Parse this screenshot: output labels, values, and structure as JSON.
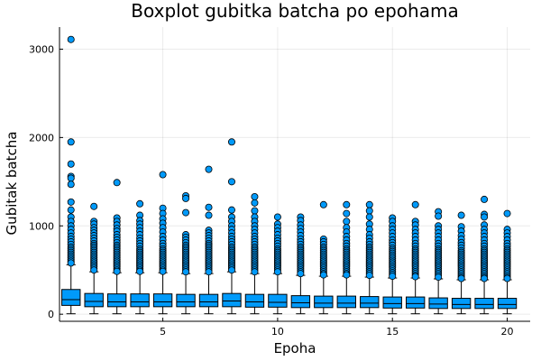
{
  "chart_data": {
    "type": "box",
    "title": "Boxplot gubitka batcha po epohama",
    "xlabel": "Epoha",
    "ylabel": "Gubitak batcha",
    "xlim": [
      0.5,
      21
    ],
    "ylim": [
      -80,
      3250
    ],
    "xticks": [
      5,
      10,
      15,
      20
    ],
    "yticks": [
      0,
      1000,
      2000,
      3000
    ],
    "grid": true,
    "legend": "none",
    "colors": {
      "box_fill": "#009AFA",
      "stroke": "#000000"
    },
    "boxes": [
      {
        "x": 1,
        "whisker_low": 5,
        "q1": 100,
        "median": 165,
        "q3": 280,
        "whisker_high": 560,
        "outliers": [
          3110,
          1950,
          1700,
          1560,
          1540,
          1470,
          1270,
          1180,
          1100,
          1050,
          1000,
          960,
          920,
          880,
          850,
          820,
          790,
          760,
          740,
          720,
          700,
          680,
          660,
          640,
          620,
          600,
          580
        ]
      },
      {
        "x": 2,
        "whisker_low": 5,
        "q1": 85,
        "median": 145,
        "q3": 235,
        "whisker_high": 480,
        "outliers": [
          1220,
          1050,
          1020,
          980,
          950,
          920,
          890,
          860,
          830,
          800,
          780,
          760,
          740,
          720,
          700,
          680,
          660,
          640,
          620,
          600,
          580,
          560,
          540,
          520,
          500
        ]
      },
      {
        "x": 3,
        "whisker_low": 5,
        "q1": 85,
        "median": 140,
        "q3": 230,
        "whisker_high": 470,
        "outliers": [
          1490,
          1090,
          1050,
          1010,
          970,
          940,
          900,
          870,
          840,
          810,
          780,
          760,
          740,
          720,
          700,
          680,
          660,
          640,
          620,
          600,
          580,
          560,
          540,
          520,
          500,
          485
        ]
      },
      {
        "x": 4,
        "whisker_low": 5,
        "q1": 85,
        "median": 140,
        "q3": 230,
        "whisker_high": 470,
        "outliers": [
          1250,
          1120,
          1060,
          1020,
          980,
          940,
          900,
          860,
          830,
          800,
          770,
          740,
          720,
          700,
          680,
          660,
          640,
          620,
          600,
          580,
          560,
          540,
          520,
          500,
          485
        ]
      },
      {
        "x": 5,
        "whisker_low": 5,
        "q1": 85,
        "median": 140,
        "q3": 230,
        "whisker_high": 470,
        "outliers": [
          1580,
          1200,
          1140,
          1080,
          1030,
          980,
          930,
          880,
          840,
          800,
          770,
          740,
          720,
          700,
          680,
          660,
          640,
          620,
          600,
          580,
          560,
          540,
          520,
          500,
          485
        ]
      },
      {
        "x": 6,
        "whisker_low": 5,
        "q1": 85,
        "median": 140,
        "q3": 225,
        "whisker_high": 460,
        "outliers": [
          1340,
          1310,
          1150,
          900,
          870,
          840,
          810,
          780,
          760,
          740,
          720,
          700,
          680,
          660,
          640,
          620,
          600,
          580,
          560,
          540,
          520,
          500,
          480
        ]
      },
      {
        "x": 7,
        "whisker_low": 5,
        "q1": 85,
        "median": 140,
        "q3": 225,
        "whisker_high": 460,
        "outliers": [
          1640,
          1210,
          1120,
          950,
          920,
          890,
          860,
          830,
          800,
          780,
          760,
          740,
          720,
          700,
          680,
          660,
          640,
          620,
          600,
          580,
          560,
          540,
          520,
          500,
          480
        ]
      },
      {
        "x": 8,
        "whisker_low": 5,
        "q1": 85,
        "median": 150,
        "q3": 235,
        "whisker_high": 480,
        "outliers": [
          1950,
          1500,
          1180,
          1100,
          1050,
          1000,
          960,
          920,
          880,
          850,
          820,
          790,
          760,
          740,
          720,
          700,
          680,
          660,
          640,
          620,
          600,
          580,
          560,
          540,
          520,
          500
        ]
      },
      {
        "x": 9,
        "whisker_low": 5,
        "q1": 80,
        "median": 140,
        "q3": 225,
        "whisker_high": 460,
        "outliers": [
          1330,
          1260,
          1170,
          1100,
          1050,
          1000,
          960,
          920,
          880,
          850,
          820,
          790,
          760,
          740,
          720,
          700,
          680,
          660,
          640,
          620,
          600,
          580,
          560,
          540,
          520,
          500,
          480
        ]
      },
      {
        "x": 10,
        "whisker_low": 5,
        "q1": 80,
        "median": 135,
        "q3": 225,
        "whisker_high": 460,
        "outliers": [
          1100,
          1020,
          980,
          940,
          900,
          860,
          830,
          800,
          770,
          740,
          720,
          700,
          680,
          660,
          640,
          620,
          600,
          580,
          560,
          540,
          520,
          500,
          480
        ]
      },
      {
        "x": 11,
        "whisker_low": 5,
        "q1": 75,
        "median": 130,
        "q3": 210,
        "whisker_high": 440,
        "outliers": [
          1100,
          1060,
          1010,
          970,
          930,
          890,
          850,
          820,
          790,
          760,
          740,
          720,
          700,
          680,
          660,
          640,
          620,
          600,
          580,
          560,
          540,
          520,
          500,
          480,
          460
        ]
      },
      {
        "x": 12,
        "whisker_low": 5,
        "q1": 75,
        "median": 125,
        "q3": 205,
        "whisker_high": 430,
        "outliers": [
          1240,
          850,
          820,
          790,
          760,
          740,
          720,
          700,
          680,
          660,
          640,
          620,
          600,
          580,
          560,
          540,
          520,
          500,
          480,
          460,
          445
        ]
      },
      {
        "x": 13,
        "whisker_low": 5,
        "q1": 75,
        "median": 125,
        "q3": 205,
        "whisker_high": 430,
        "outliers": [
          1240,
          1140,
          1050,
          980,
          930,
          880,
          840,
          800,
          770,
          740,
          720,
          700,
          680,
          660,
          640,
          620,
          600,
          580,
          560,
          540,
          520,
          500,
          480,
          460,
          445
        ]
      },
      {
        "x": 14,
        "whisker_low": 5,
        "q1": 75,
        "median": 125,
        "q3": 200,
        "whisker_high": 420,
        "outliers": [
          1240,
          1170,
          1100,
          1020,
          960,
          900,
          860,
          820,
          790,
          760,
          740,
          720,
          700,
          680,
          660,
          640,
          620,
          600,
          580,
          560,
          540,
          520,
          500,
          480,
          460,
          440
        ]
      },
      {
        "x": 15,
        "whisker_low": 5,
        "q1": 70,
        "median": 120,
        "q3": 195,
        "whisker_high": 410,
        "outliers": [
          1090,
          1050,
          1000,
          960,
          920,
          880,
          840,
          810,
          780,
          750,
          730,
          710,
          690,
          670,
          650,
          630,
          610,
          590,
          570,
          550,
          530,
          510,
          490,
          470,
          450,
          430
        ]
      },
      {
        "x": 16,
        "whisker_low": 5,
        "q1": 70,
        "median": 120,
        "q3": 195,
        "whisker_high": 410,
        "outliers": [
          1240,
          1050,
          1010,
          960,
          920,
          880,
          840,
          800,
          770,
          740,
          720,
          700,
          680,
          660,
          640,
          620,
          600,
          580,
          560,
          540,
          520,
          500,
          480,
          460,
          440,
          425
        ]
      },
      {
        "x": 17,
        "whisker_low": 5,
        "q1": 65,
        "median": 115,
        "q3": 185,
        "whisker_high": 400,
        "outliers": [
          1160,
          1110,
          1000,
          960,
          920,
          880,
          840,
          800,
          770,
          740,
          720,
          700,
          680,
          660,
          640,
          620,
          600,
          580,
          560,
          540,
          520,
          500,
          480,
          460,
          440,
          420
        ]
      },
      {
        "x": 18,
        "whisker_low": 5,
        "q1": 65,
        "median": 110,
        "q3": 180,
        "whisker_high": 390,
        "outliers": [
          1120,
          990,
          940,
          890,
          850,
          810,
          780,
          750,
          720,
          700,
          680,
          660,
          640,
          620,
          600,
          580,
          560,
          540,
          520,
          500,
          480,
          460,
          440,
          420,
          405
        ]
      },
      {
        "x": 19,
        "whisker_low": 5,
        "q1": 65,
        "median": 110,
        "q3": 180,
        "whisker_high": 390,
        "outliers": [
          1300,
          1130,
          1100,
          1010,
          960,
          920,
          880,
          840,
          800,
          770,
          740,
          720,
          700,
          680,
          660,
          640,
          620,
          600,
          580,
          560,
          540,
          520,
          500,
          480,
          460,
          440,
          420,
          405
        ]
      },
      {
        "x": 20,
        "whisker_low": 5,
        "q1": 65,
        "median": 110,
        "q3": 180,
        "whisker_high": 390,
        "outliers": [
          1140,
          960,
          920,
          880,
          840,
          800,
          770,
          740,
          720,
          700,
          680,
          660,
          640,
          620,
          600,
          580,
          560,
          540,
          520,
          500,
          480,
          460,
          440,
          420,
          405
        ]
      }
    ]
  }
}
